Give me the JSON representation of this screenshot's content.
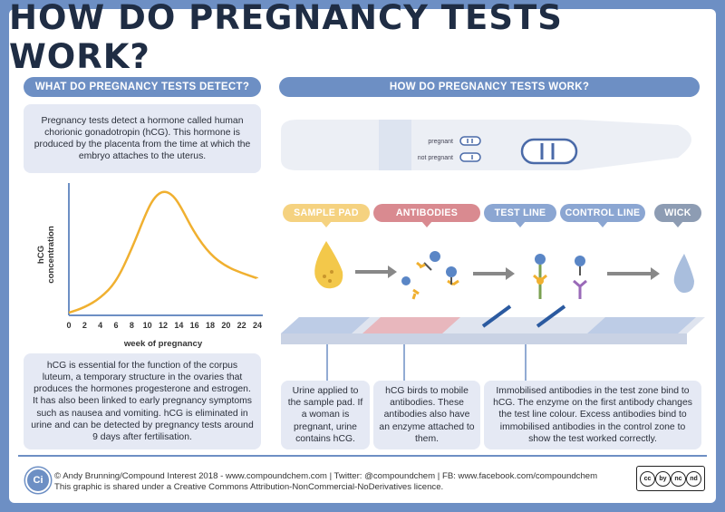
{
  "title": "HOW DO PREGNANCY TESTS WORK?",
  "left": {
    "header": "WHAT DO PREGNANCY TESTS DETECT?",
    "intro": "Pregnancy tests detect a hormone called human chorionic gonadotropin (hCG). This hormone is produced by the placenta from the time at which the embryo attaches to the uterus.",
    "bottom": "hCG is essential for the function of the corpus luteum, a temporary structure in the ovaries that produces the hormones progesterone and estrogen. It has also been linked to early pregnancy symptoms such as nausea and vomiting. hCG is eliminated in urine and can be detected by pregnancy tests around 9 days after fertilisation."
  },
  "chart_data": {
    "type": "line",
    "xlabel": "week of pregnancy",
    "ylabel": "hCG concentration",
    "xticks": [
      "0",
      "2",
      "4",
      "6",
      "8",
      "10",
      "12",
      "14",
      "16",
      "18",
      "20",
      "22",
      "24"
    ],
    "xlim": [
      0,
      24
    ],
    "ylim": [
      0,
      100
    ],
    "series": [
      {
        "x": [
          0,
          2,
          4,
          6,
          8,
          10,
          11,
          12,
          13,
          14,
          16,
          18,
          20,
          22,
          24
        ],
        "values": [
          2,
          6,
          13,
          25,
          50,
          80,
          90,
          94,
          92,
          85,
          62,
          46,
          37,
          32,
          28
        ]
      }
    ]
  },
  "right": {
    "header": "HOW DO PREGNANCY TESTS WORK?",
    "stick": {
      "pregnant_label": "pregnant",
      "not_pregnant_label": "not pregnant"
    },
    "zones": [
      {
        "label": "SAMPLE PAD",
        "color": "#f5d280"
      },
      {
        "label": "ANTIBODIES",
        "color": "#d98a90"
      },
      {
        "label": "TEST LINE",
        "color": "#8ba6d2"
      },
      {
        "label": "CONTROL LINE",
        "color": "#8ba6d2"
      },
      {
        "label": "WICK",
        "color": "#8d9cb3"
      }
    ],
    "captions": {
      "sample_pad": "Urine applied to the sample pad. If a woman is pregnant, urine contains hCG.",
      "antibodies": "hCG birds to mobile antibodies. These antibodies also have an enzyme attached to them.",
      "test_zone": "Immobilised antibodies in the test zone bind to hCG. The enzyme on the first antibody changes the test line colour. Excess antibodies bind to immobilised antibodies in the control zone to show the test worked correctly."
    }
  },
  "footer": {
    "logo": "Ci",
    "credit": "© Andy Brunning/Compound Interest 2018 - www.compoundchem.com | Twitter: @compoundchem | FB: www.facebook.com/compoundchem",
    "license": "This graphic is shared under a Creative Commons Attribution-NonCommercial-NoDerivatives licence.",
    "cc_icons": [
      "cc",
      "by",
      "nc",
      "nd"
    ]
  }
}
